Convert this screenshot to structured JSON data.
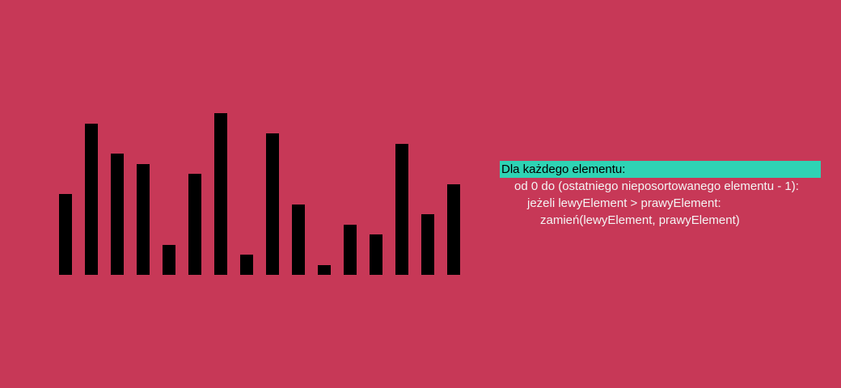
{
  "visualization": {
    "values": [
      100,
      187,
      150,
      137,
      37,
      125,
      200,
      25,
      175,
      87,
      12,
      62,
      50,
      162,
      75,
      112
    ],
    "bar_color": "#000000",
    "background_color": "#c73857"
  },
  "pseudocode": {
    "highlight_color": "#2ed3b4",
    "active_line": 0,
    "lines": [
      {
        "text": "Dla każdego elementu:",
        "indent": 0
      },
      {
        "text": "od 0 do (ostatniego nieposortowanego elementu - 1):",
        "indent": 1
      },
      {
        "text": "jeżeli lewyElement > prawyElement:",
        "indent": 2
      },
      {
        "text": "zamień(lewyElement, prawyElement)",
        "indent": 3
      }
    ]
  }
}
